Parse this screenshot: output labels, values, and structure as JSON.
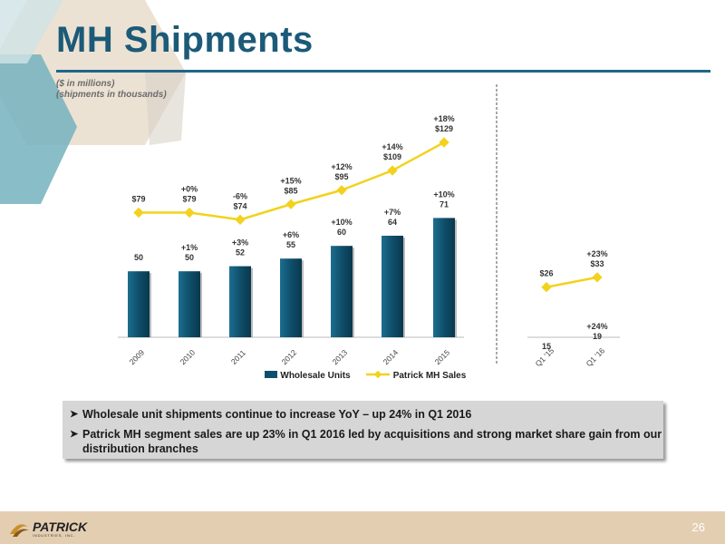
{
  "slide": {
    "title": "MH Shipments",
    "notes": [
      "($ in millions)",
      "(shipments in thousands)"
    ],
    "page_number": "26",
    "logo_text": "PATRICK",
    "logo_subtext": "INDUSTRIES, INC."
  },
  "colors": {
    "title": "#1b5a78",
    "bar": "#0f4f6a",
    "line": "#f2d21c",
    "bullet_box": "#d6d6d6",
    "footer": "#e4ceb2"
  },
  "bullets": [
    "Wholesale unit shipments continue to increase YoY – up 24% in Q1 2016",
    "Patrick MH segment sales are up 23% in Q1 2016 led by acquisitions and strong market share gain from our distribution branches"
  ],
  "chart_data": [
    {
      "type": "bar+line",
      "categories": [
        "2009",
        "2010",
        "2011",
        "2012",
        "2013",
        "2014",
        "2015"
      ],
      "series": [
        {
          "name": "Wholesale Units",
          "type": "bar",
          "values": [
            50,
            50,
            52,
            55,
            60,
            64,
            71
          ],
          "labels": [
            "50",
            "50",
            "52",
            "55",
            "60",
            "64",
            "71"
          ],
          "growth": [
            "",
            "+1%",
            "+3%",
            "+6%",
            "+10%",
            "+7%",
            "+10%"
          ]
        },
        {
          "name": "Patrick MH Sales",
          "type": "line",
          "values": [
            79,
            79,
            74,
            85,
            95,
            109,
            129
          ],
          "labels": [
            "$79",
            "$79",
            "$74",
            "$85",
            "$95",
            "$109",
            "$129"
          ],
          "growth": [
            "",
            "+0%",
            "-6%",
            "+15%",
            "+12%",
            "+14%",
            "+18%"
          ]
        }
      ],
      "legend": "bottom"
    },
    {
      "type": "bar+line",
      "categories": [
        "Q1 '15",
        "Q1 '16"
      ],
      "series": [
        {
          "name": "Wholesale Units",
          "type": "bar",
          "values": [
            15,
            19
          ],
          "labels": [
            "15",
            "19"
          ],
          "growth": [
            "",
            "+24%"
          ]
        },
        {
          "name": "Patrick MH Sales",
          "type": "line",
          "values": [
            26,
            33
          ],
          "labels": [
            "$26",
            "$33"
          ],
          "growth": [
            "",
            "+23%"
          ]
        }
      ]
    }
  ]
}
